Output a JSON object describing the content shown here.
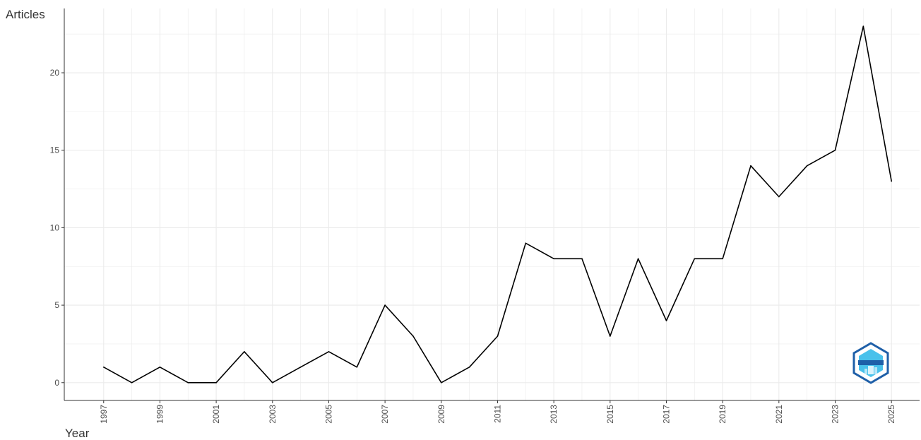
{
  "chart_data": {
    "type": "line",
    "ylabel": "Articles",
    "xlabel": "Year",
    "x": [
      1997,
      1998,
      1999,
      2000,
      2001,
      2002,
      2003,
      2004,
      2005,
      2006,
      2007,
      2008,
      2009,
      2010,
      2011,
      2012,
      2013,
      2014,
      2015,
      2016,
      2017,
      2018,
      2019,
      2020,
      2021,
      2022,
      2023,
      2024,
      2025
    ],
    "values": [
      1,
      0,
      1,
      0,
      0,
      2,
      0,
      1,
      2,
      1,
      5,
      3,
      0,
      1,
      3,
      9,
      8,
      8,
      3,
      8,
      4,
      8,
      8,
      14,
      12,
      14,
      15,
      23,
      13
    ],
    "x_tick_labels": [
      "1997",
      "1999",
      "2001",
      "2003",
      "2005",
      "2007",
      "2009",
      "2011",
      "2013",
      "2015",
      "2017",
      "2019",
      "2021",
      "2023",
      "2025"
    ],
    "y_tick_labels": [
      "0",
      "5",
      "10",
      "15",
      "20"
    ],
    "y_ticks": [
      0,
      5,
      10,
      15,
      20
    ],
    "xlim": [
      1995.6,
      2026.0
    ],
    "ylim": [
      -1.15,
      24.15
    ],
    "grid": true,
    "line_color": "#000000",
    "grid_color": "#ebebeb",
    "logo_colors": [
      "#1e5fa8",
      "#29b6e8"
    ]
  }
}
